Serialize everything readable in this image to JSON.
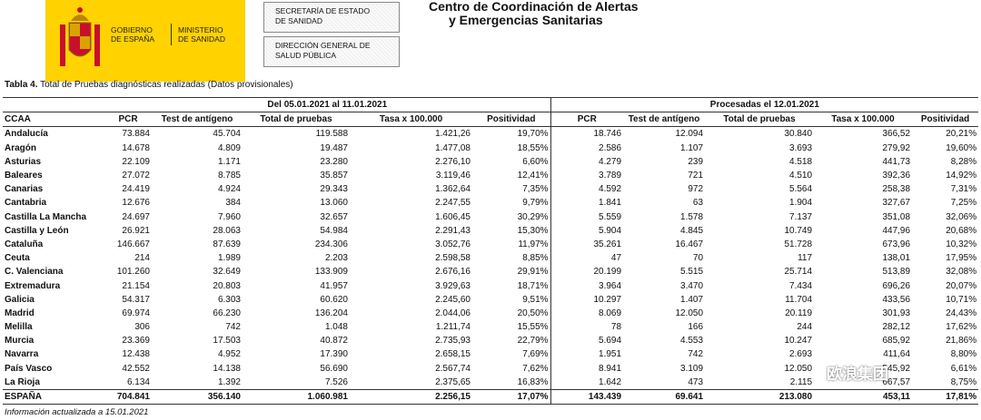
{
  "header": {
    "gobierno": [
      "GOBIERNO",
      "DE ESPAÑA"
    ],
    "ministerio": [
      "MINISTERIO",
      "DE SANIDAD"
    ],
    "secretaria": [
      "SECRETARÍA DE ESTADO",
      "DE SANIDAD"
    ],
    "direccion": [
      "DIRECCIÓN GENERAL DE",
      "SALUD PÚBLICA"
    ],
    "title": [
      "Centro de Coordinación de Alertas",
      "y Emergencias Sanitarias"
    ]
  },
  "caption": {
    "label": "Tabla 4.",
    "text": "Total de Pruebas diagnósticas realizadas (Datos provisionales)"
  },
  "table": {
    "group_headers": [
      "Del 05.01.2021 al 11.01.2021",
      "Procesadas el 12.01.2021"
    ],
    "columns": [
      "CCAA",
      "PCR",
      "Test de antígeno",
      "Total de pruebas",
      "Tasa x 100.000",
      "Positividad",
      "PCR",
      "Test de antígeno",
      "Total de pruebas",
      "Tasa x 100.000",
      "Positividad"
    ],
    "rows": [
      [
        "Andalucía",
        "73.884",
        "45.704",
        "119.588",
        "1.421,26",
        "19,70%",
        "18.746",
        "12.094",
        "30.840",
        "366,52",
        "20,21%"
      ],
      [
        "Aragón",
        "14.678",
        "4.809",
        "19.487",
        "1.477,08",
        "18,55%",
        "2.586",
        "1.107",
        "3.693",
        "279,92",
        "19,60%"
      ],
      [
        "Asturias",
        "22.109",
        "1.171",
        "23.280",
        "2.276,10",
        "6,60%",
        "4.279",
        "239",
        "4.518",
        "441,73",
        "8,28%"
      ],
      [
        "Baleares",
        "27.072",
        "8.785",
        "35.857",
        "3.119,46",
        "12,41%",
        "3.789",
        "721",
        "4.510",
        "392,36",
        "14,92%"
      ],
      [
        "Canarias",
        "24.419",
        "4.924",
        "29.343",
        "1.362,64",
        "7,35%",
        "4.592",
        "972",
        "5.564",
        "258,38",
        "7,31%"
      ],
      [
        "Cantabria",
        "12.676",
        "384",
        "13.060",
        "2.247,55",
        "9,79%",
        "1.841",
        "63",
        "1.904",
        "327,67",
        "7,25%"
      ],
      [
        "Castilla La Mancha",
        "24.697",
        "7.960",
        "32.657",
        "1.606,45",
        "30,29%",
        "5.559",
        "1.578",
        "7.137",
        "351,08",
        "32,06%"
      ],
      [
        "Castilla y León",
        "26.921",
        "28.063",
        "54.984",
        "2.291,43",
        "15,30%",
        "5.904",
        "4.845",
        "10.749",
        "447,96",
        "20,68%"
      ],
      [
        "Cataluña",
        "146.667",
        "87.639",
        "234.306",
        "3.052,76",
        "11,97%",
        "35.261",
        "16.467",
        "51.728",
        "673,96",
        "10,32%"
      ],
      [
        "Ceuta",
        "214",
        "1.989",
        "2.203",
        "2.598,58",
        "8,85%",
        "47",
        "70",
        "117",
        "138,01",
        "17,95%"
      ],
      [
        "C. Valenciana",
        "101.260",
        "32.649",
        "133.909",
        "2.676,16",
        "29,91%",
        "20.199",
        "5.515",
        "25.714",
        "513,89",
        "32,08%"
      ],
      [
        "Extremadura",
        "21.154",
        "20.803",
        "41.957",
        "3.929,63",
        "18,71%",
        "3.964",
        "3.470",
        "7.434",
        "696,26",
        "20,07%"
      ],
      [
        "Galicia",
        "54.317",
        "6.303",
        "60.620",
        "2.245,60",
        "9,51%",
        "10.297",
        "1.407",
        "11.704",
        "433,56",
        "10,71%"
      ],
      [
        "Madrid",
        "69.974",
        "66.230",
        "136.204",
        "2.044,06",
        "20,50%",
        "8.069",
        "12.050",
        "20.119",
        "301,93",
        "24,43%"
      ],
      [
        "Melilla",
        "306",
        "742",
        "1.048",
        "1.211,74",
        "15,55%",
        "78",
        "166",
        "244",
        "282,12",
        "17,62%"
      ],
      [
        "Murcia",
        "23.369",
        "17.503",
        "40.872",
        "2.735,93",
        "22,79%",
        "5.694",
        "4.553",
        "10.247",
        "685,92",
        "21,86%"
      ],
      [
        "Navarra",
        "12.438",
        "4.952",
        "17.390",
        "2.658,15",
        "7,69%",
        "1.951",
        "742",
        "2.693",
        "411,64",
        "8,80%"
      ],
      [
        "País Vasco",
        "42.552",
        "14.138",
        "56.690",
        "2.567,74",
        "7,62%",
        "8.941",
        "3.109",
        "12.050",
        "545,92",
        "6,61%"
      ],
      [
        "La Rioja",
        "6.134",
        "1.392",
        "7.526",
        "2.375,65",
        "16,83%",
        "1.642",
        "473",
        "2.115",
        "667,57",
        "8,75%"
      ]
    ],
    "total": [
      "ESPAÑA",
      "704.841",
      "356.140",
      "1.060.981",
      "2.256,15",
      "17,07%",
      "143.439",
      "69.641",
      "213.080",
      "453,11",
      "17,81%"
    ]
  },
  "footer": "Información actualizada a 15.01.2021",
  "watermark": "欧浪集团"
}
